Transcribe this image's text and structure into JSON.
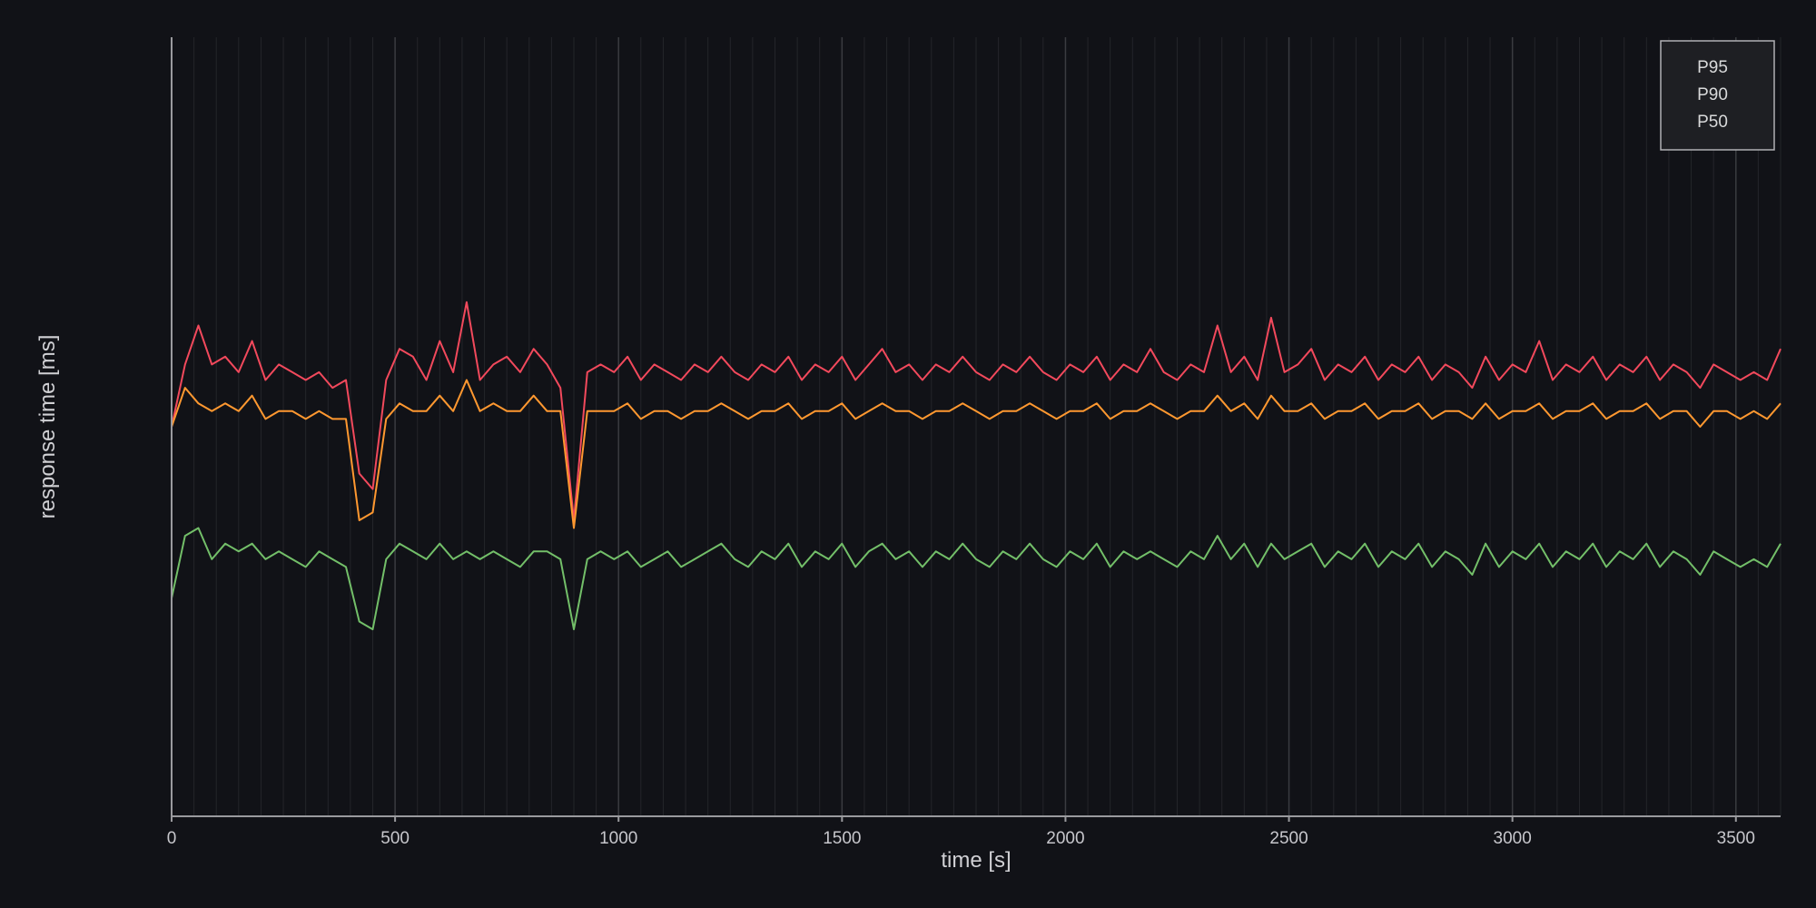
{
  "chart_data": {
    "type": "line",
    "title": "",
    "xlabel": "time [s]",
    "ylabel": "response time [ms]",
    "xlim": [
      0,
      3600
    ],
    "ylim": [
      0,
      100
    ],
    "x_start": 0,
    "x_step": 30,
    "x_ticks": [
      0,
      500,
      1000,
      1500,
      2000,
      2500,
      3000,
      3500
    ],
    "x_tick_labels": [
      "0",
      "500",
      "1000",
      "1500",
      "2000",
      "2500",
      "3000",
      "3500"
    ],
    "x_minor_step": 50,
    "grid": true,
    "legend_position": "top-right",
    "series": [
      {
        "name": "P95",
        "color": "#f2495c",
        "values": [
          50,
          58,
          63,
          58,
          59,
          57,
          61,
          56,
          58,
          57,
          56,
          57,
          55,
          56,
          44,
          42,
          56,
          60,
          59,
          56,
          61,
          57,
          66,
          56,
          58,
          59,
          57,
          60,
          58,
          55,
          38,
          57,
          58,
          57,
          59,
          56,
          58,
          57,
          56,
          58,
          57,
          59,
          57,
          56,
          58,
          57,
          59,
          56,
          58,
          57,
          59,
          56,
          58,
          60,
          57,
          58,
          56,
          58,
          57,
          59,
          57,
          56,
          58,
          57,
          59,
          57,
          56,
          58,
          57,
          59,
          56,
          58,
          57,
          60,
          57,
          56,
          58,
          57,
          63,
          57,
          59,
          56,
          64,
          57,
          58,
          60,
          56,
          58,
          57,
          59,
          56,
          58,
          57,
          59,
          56,
          58,
          57,
          55,
          59,
          56,
          58,
          57,
          61,
          56,
          58,
          57,
          59,
          56,
          58,
          57,
          59,
          56,
          58,
          57,
          55,
          58,
          57,
          56,
          57,
          56,
          60
        ]
      },
      {
        "name": "P90",
        "color": "#ff9830",
        "values": [
          50,
          55,
          53,
          52,
          53,
          52,
          54,
          51,
          52,
          52,
          51,
          52,
          51,
          51,
          38,
          39,
          51,
          53,
          52,
          52,
          54,
          52,
          56,
          52,
          53,
          52,
          52,
          54,
          52,
          52,
          37,
          52,
          52,
          52,
          53,
          51,
          52,
          52,
          51,
          52,
          52,
          53,
          52,
          51,
          52,
          52,
          53,
          51,
          52,
          52,
          53,
          51,
          52,
          53,
          52,
          52,
          51,
          52,
          52,
          53,
          52,
          51,
          52,
          52,
          53,
          52,
          51,
          52,
          52,
          53,
          51,
          52,
          52,
          53,
          52,
          51,
          52,
          52,
          54,
          52,
          53,
          51,
          54,
          52,
          52,
          53,
          51,
          52,
          52,
          53,
          51,
          52,
          52,
          53,
          51,
          52,
          52,
          51,
          53,
          51,
          52,
          52,
          53,
          51,
          52,
          52,
          53,
          51,
          52,
          52,
          53,
          51,
          52,
          52,
          50,
          52,
          52,
          51,
          52,
          51,
          53
        ]
      },
      {
        "name": "P50",
        "color": "#73bf69",
        "values": [
          28,
          36,
          37,
          33,
          35,
          34,
          35,
          33,
          34,
          33,
          32,
          34,
          33,
          32,
          25,
          24,
          33,
          35,
          34,
          33,
          35,
          33,
          34,
          33,
          34,
          33,
          32,
          34,
          34,
          33,
          24,
          33,
          34,
          33,
          34,
          32,
          33,
          34,
          32,
          33,
          34,
          35,
          33,
          32,
          34,
          33,
          35,
          32,
          34,
          33,
          35,
          32,
          34,
          35,
          33,
          34,
          32,
          34,
          33,
          35,
          33,
          32,
          34,
          33,
          35,
          33,
          32,
          34,
          33,
          35,
          32,
          34,
          33,
          34,
          33,
          32,
          34,
          33,
          36,
          33,
          35,
          32,
          35,
          33,
          34,
          35,
          32,
          34,
          33,
          35,
          32,
          34,
          33,
          35,
          32,
          34,
          33,
          31,
          35,
          32,
          34,
          33,
          35,
          32,
          34,
          33,
          35,
          32,
          34,
          33,
          35,
          32,
          34,
          33,
          31,
          34,
          33,
          32,
          33,
          32,
          35
        ]
      }
    ]
  }
}
